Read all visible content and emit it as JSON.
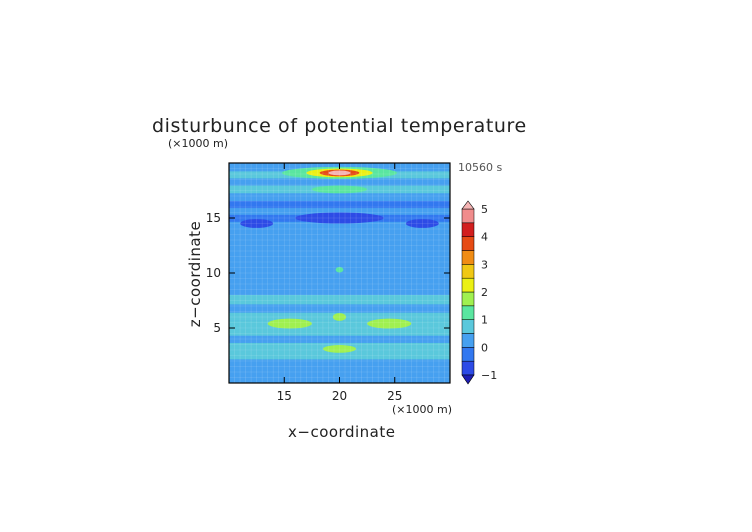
{
  "chart_data": {
    "type": "heatmap",
    "title": "disturbunce of potential temperature",
    "xlabel": "x−coordinate",
    "ylabel": "z−coordinate",
    "x_unit": "(×1000 m)",
    "y_unit": "(×1000 m)",
    "time_label": "10560 s",
    "xlim": [
      10,
      30
    ],
    "ylim": [
      0,
      20
    ],
    "x_ticks": [
      "15",
      "20",
      "25"
    ],
    "y_ticks": [
      "5",
      "10",
      "15"
    ],
    "colorbar": {
      "levels": [
        -1,
        -0.5,
        0,
        0.5,
        1,
        1.5,
        2,
        2.5,
        3,
        3.5,
        4,
        4.5,
        5
      ],
      "tick_labels": [
        "5",
        "4",
        "3",
        "2",
        "1",
        "0",
        "−1"
      ],
      "colors": [
        "#1e1eb4",
        "#2d4be6",
        "#3278f0",
        "#46a0f0",
        "#5ac8dc",
        "#5ae6a0",
        "#a0f050",
        "#ebf014",
        "#f0c814",
        "#f08c14",
        "#e64b14",
        "#d21e1e",
        "#f08c8c",
        "#f5b4b4"
      ]
    },
    "bands": [
      {
        "z": 0.5,
        "value": 0.0
      },
      {
        "z": 1.0,
        "value": 0.35
      },
      {
        "z": 1.7,
        "value": 0.05
      },
      {
        "z": 2.6,
        "value": 0.55
      },
      {
        "z": 3.3,
        "value": 0.85
      },
      {
        "z": 4.0,
        "value": 0.25
      },
      {
        "z": 4.6,
        "value": 0.55
      },
      {
        "z": 5.3,
        "value": 0.95
      },
      {
        "z": 6.0,
        "value": 0.7
      },
      {
        "z": 6.8,
        "value": 0.35
      },
      {
        "z": 7.5,
        "value": 0.55
      },
      {
        "z": 8.5,
        "value": 0.15
      },
      {
        "z": 9.5,
        "value": 0.3
      },
      {
        "z": 10.5,
        "value": 0.2
      },
      {
        "z": 11.5,
        "value": 0.05
      },
      {
        "z": 12.5,
        "value": 0.1
      },
      {
        "z": 13.5,
        "value": 0.0
      },
      {
        "z": 14.3,
        "value": 0.15
      },
      {
        "z": 15.0,
        "value": -0.5
      },
      {
        "z": 15.6,
        "value": 0.4
      },
      {
        "z": 16.2,
        "value": -0.3
      },
      {
        "z": 16.9,
        "value": 0.3
      },
      {
        "z": 17.6,
        "value": 0.9
      },
      {
        "z": 18.3,
        "value": 0.2
      },
      {
        "z": 18.9,
        "value": 0.6
      },
      {
        "z": 19.6,
        "value": 0.0
      }
    ],
    "features": [
      {
        "x": 20.0,
        "z": 19.1,
        "rx": 5.2,
        "rz": 0.55,
        "value": 1.4
      },
      {
        "x": 20.0,
        "z": 19.1,
        "rx": 3.0,
        "rz": 0.4,
        "value": 2.3
      },
      {
        "x": 20.0,
        "z": 19.1,
        "rx": 1.8,
        "rz": 0.3,
        "value": 3.8
      },
      {
        "x": 20.0,
        "z": 19.1,
        "rx": 1.0,
        "rz": 0.22,
        "value": 5.0
      },
      {
        "x": 15.5,
        "z": 5.4,
        "rx": 2.0,
        "rz": 0.45,
        "value": 1.9
      },
      {
        "x": 24.5,
        "z": 5.4,
        "rx": 2.0,
        "rz": 0.45,
        "value": 1.9
      },
      {
        "x": 20.0,
        "z": 3.1,
        "rx": 1.5,
        "rz": 0.35,
        "value": 1.5
      },
      {
        "x": 20.0,
        "z": 6.0,
        "rx": 0.6,
        "rz": 0.35,
        "value": 1.6
      },
      {
        "x": 20.0,
        "z": 10.3,
        "rx": 0.35,
        "rz": 0.25,
        "value": 1.0
      },
      {
        "x": 20.0,
        "z": 15.0,
        "rx": 4.0,
        "rz": 0.5,
        "value": -0.9
      },
      {
        "x": 12.5,
        "z": 14.5,
        "rx": 1.5,
        "rz": 0.4,
        "value": -0.6
      },
      {
        "x": 27.5,
        "z": 14.5,
        "rx": 1.5,
        "rz": 0.4,
        "value": -0.6
      },
      {
        "x": 20.0,
        "z": 17.6,
        "rx": 2.5,
        "rz": 0.35,
        "value": 1.3
      }
    ]
  }
}
